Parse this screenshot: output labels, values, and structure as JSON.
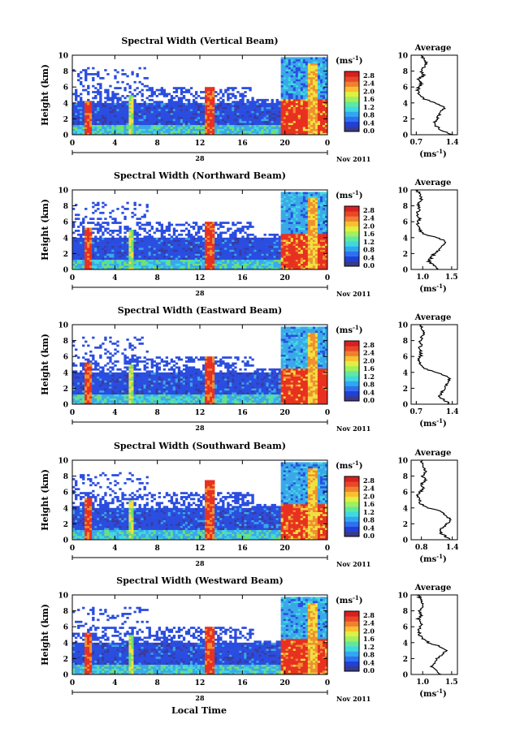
{
  "figure": {
    "xlabel": "Local Time",
    "colorbar_unit": "(ms",
    "colorbar_unit_exp": "-1",
    "avg_title": "Average",
    "ylabel": "Height (km)",
    "date_day": "28",
    "date_month": "Nov 2011",
    "colors": {
      "low": "#3a3aa0",
      "blue": "#2a4de0",
      "sky": "#3aa8e8",
      "cyan": "#40d8e0",
      "green": "#70e070",
      "yellow": "#f0e040",
      "orange": "#f09030",
      "red": "#e83020"
    }
  },
  "chart_data": [
    {
      "type": "heatmap",
      "title": "Spectral Width (Vertical Beam)",
      "x_ticks": [
        "0",
        "4",
        "8",
        "12",
        "16",
        "20",
        "0"
      ],
      "xlim": [
        0,
        24
      ],
      "y_ticks": [
        "0",
        "2",
        "4",
        "6",
        "8",
        "10"
      ],
      "ylim": [
        0,
        10
      ],
      "colorbar_ticks": [
        "0.0",
        "0.4",
        "0.8",
        "1.2",
        "1.6",
        "2.0",
        "2.4",
        "2.8"
      ],
      "colorbar_range": [
        0.0,
        2.8
      ],
      "profile": {
        "title": "Average",
        "x_ticks": [
          "0.7",
          "1.4"
        ],
        "xlim": [
          0.6,
          1.5
        ],
        "heights": [
          0,
          0.5,
          1,
          1.5,
          2,
          2.5,
          3,
          3.5,
          4,
          4.5,
          5,
          5.5,
          6,
          6.5,
          7,
          7.5,
          8,
          8.5,
          9,
          9.5,
          10
        ],
        "values": [
          1.4,
          1.2,
          1.1,
          1.05,
          1.1,
          1.15,
          1.2,
          1.25,
          1.05,
          0.85,
          0.75,
          0.72,
          0.75,
          0.8,
          0.75,
          0.85,
          0.8,
          0.85,
          0.9,
          0.85,
          0.8
        ]
      }
    },
    {
      "type": "heatmap",
      "title": "Spectral Width (Northward Beam)",
      "x_ticks": [
        "0",
        "4",
        "8",
        "12",
        "16",
        "20",
        "0"
      ],
      "xlim": [
        0,
        24
      ],
      "y_ticks": [
        "0",
        "2",
        "4",
        "6",
        "8",
        "10"
      ],
      "ylim": [
        0,
        10
      ],
      "colorbar_ticks": [
        "0.0",
        "0.4",
        "0.8",
        "1.2",
        "1.6",
        "2.0",
        "2.4",
        "2.8"
      ],
      "colorbar_range": [
        0.0,
        2.8
      ],
      "profile": {
        "title": "Average",
        "x_ticks": [
          "1.0",
          "1.5"
        ],
        "xlim": [
          0.8,
          1.6
        ],
        "heights": [
          0,
          0.5,
          1,
          1.5,
          2,
          2.5,
          3,
          3.5,
          4,
          4.5,
          5,
          5.5,
          6,
          6.5,
          7,
          7.5,
          8,
          8.5,
          9,
          9.5,
          10
        ],
        "values": [
          1.25,
          1.2,
          1.1,
          1.15,
          1.2,
          1.3,
          1.35,
          1.4,
          1.25,
          1.0,
          0.95,
          0.9,
          0.92,
          0.95,
          0.9,
          0.95,
          0.92,
          0.95,
          0.98,
          0.95,
          0.9
        ]
      }
    },
    {
      "type": "heatmap",
      "title": "Spectral Width (Eastward Beam)",
      "x_ticks": [
        "0",
        "4",
        "8",
        "12",
        "16",
        "20",
        "0"
      ],
      "xlim": [
        0,
        24
      ],
      "y_ticks": [
        "0",
        "2",
        "4",
        "6",
        "8",
        "10"
      ],
      "ylim": [
        0,
        10
      ],
      "colorbar_ticks": [
        "0.0",
        "0.4",
        "0.8",
        "1.2",
        "1.6",
        "2.0",
        "2.4",
        "2.8"
      ],
      "colorbar_range": [
        0.0,
        2.8
      ],
      "profile": {
        "title": "Average",
        "x_ticks": [
          "0.7",
          "1.4"
        ],
        "xlim": [
          0.6,
          1.5
        ],
        "heights": [
          0,
          0.5,
          1,
          1.5,
          2,
          2.5,
          3,
          3.5,
          4,
          4.5,
          5,
          5.5,
          6,
          6.5,
          7,
          7.5,
          8,
          8.5,
          9,
          9.5,
          10
        ],
        "values": [
          1.35,
          1.25,
          1.15,
          1.2,
          1.25,
          1.3,
          1.35,
          1.3,
          1.1,
          0.85,
          0.78,
          0.75,
          0.78,
          0.8,
          0.75,
          0.8,
          0.78,
          0.82,
          0.85,
          0.8,
          0.78
        ]
      }
    },
    {
      "type": "heatmap",
      "title": "Spectral Width (Southward Beam)",
      "x_ticks": [
        "0",
        "4",
        "8",
        "12",
        "16",
        "20",
        "0"
      ],
      "xlim": [
        0,
        24
      ],
      "y_ticks": [
        "0",
        "2",
        "4",
        "6",
        "8",
        "10"
      ],
      "ylim": [
        0,
        10
      ],
      "colorbar_ticks": [
        "0.0",
        "0.4",
        "0.8",
        "1.2",
        "1.6",
        "2.0",
        "2.4",
        "2.8"
      ],
      "colorbar_range": [
        0.0,
        2.8
      ],
      "profile": {
        "title": "Average",
        "x_ticks": [
          "0.8",
          "1.4"
        ],
        "xlim": [
          0.6,
          1.5
        ],
        "heights": [
          0,
          0.5,
          1,
          1.5,
          2,
          2.5,
          3,
          3.5,
          4,
          4.5,
          5,
          5.5,
          6,
          6.5,
          7,
          7.5,
          8,
          8.5,
          9,
          9.5,
          10
        ],
        "values": [
          1.35,
          1.25,
          1.15,
          1.2,
          1.3,
          1.35,
          1.3,
          1.2,
          0.95,
          0.8,
          0.75,
          0.72,
          0.78,
          0.85,
          0.8,
          0.9,
          0.82,
          0.88,
          0.85,
          0.82,
          0.8
        ]
      }
    },
    {
      "type": "heatmap",
      "title": "Spectral Width (Westward Beam)",
      "x_ticks": [
        "0",
        "4",
        "8",
        "12",
        "16",
        "20",
        "0"
      ],
      "xlim": [
        0,
        24
      ],
      "y_ticks": [
        "0",
        "2",
        "4",
        "6",
        "8",
        "10"
      ],
      "ylim": [
        0,
        10
      ],
      "colorbar_ticks": [
        "0.0",
        "0.4",
        "0.8",
        "1.2",
        "1.6",
        "2.0",
        "2.4",
        "2.8"
      ],
      "colorbar_range": [
        0.0,
        2.8
      ],
      "profile": {
        "title": "Average",
        "x_ticks": [
          "1.0",
          "1.5"
        ],
        "xlim": [
          0.8,
          1.6
        ],
        "heights": [
          0,
          0.5,
          1,
          1.5,
          2,
          2.5,
          3,
          3.5,
          4,
          4.5,
          5,
          5.5,
          6,
          6.5,
          7,
          7.5,
          8,
          8.5,
          9,
          9.5,
          10
        ],
        "values": [
          1.3,
          1.25,
          1.15,
          1.2,
          1.25,
          1.35,
          1.4,
          1.3,
          1.1,
          1.0,
          0.95,
          0.92,
          0.95,
          0.98,
          0.92,
          0.98,
          0.95,
          0.98,
          1.0,
          0.96,
          0.92
        ]
      }
    }
  ]
}
